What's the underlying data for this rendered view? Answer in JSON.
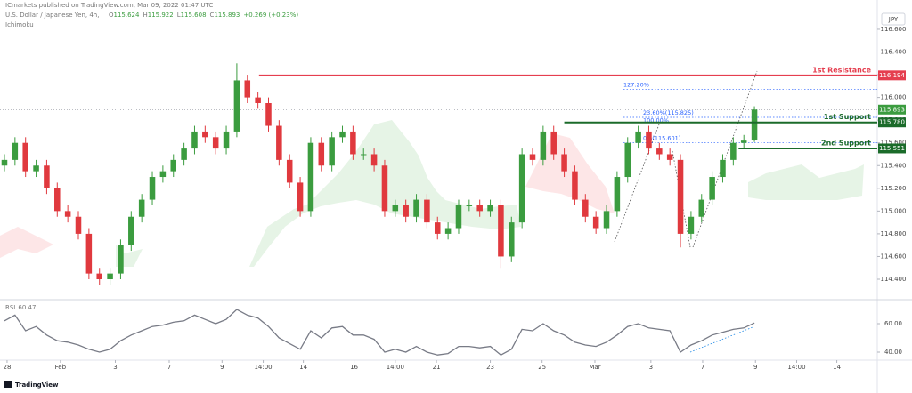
{
  "header": {
    "publisher": "ICmarkets published on TradingView.com, Mar 09, 2022 01:47 UTC",
    "symbol": "U.S. Dollar / Japanese Yen, 4h,",
    "ohlc_letters": [
      "O",
      "H",
      "L",
      "C"
    ],
    "change": "+0.269 (+0.23%)",
    "indicator": "Ichimoku",
    "currency": "JPY",
    "brand": "TradingView"
  },
  "chart_data": {
    "type": "candlestick",
    "candles": {
      "open": [
        115.4,
        115.45,
        115.6,
        115.35,
        115.4,
        115.2,
        115.0,
        114.95,
        114.8,
        114.45,
        114.4,
        114.45,
        114.7,
        114.95,
        115.1,
        115.3,
        115.35,
        115.45,
        115.55,
        115.7,
        115.65,
        115.55,
        115.7,
        116.15,
        116.0,
        115.95,
        115.75,
        115.45,
        115.25,
        115.0,
        115.6,
        115.4,
        115.65,
        115.7,
        115.5,
        115.5,
        115.4,
        115.0,
        115.05,
        114.95,
        115.1,
        114.9,
        114.8,
        114.85,
        115.05,
        115.05,
        115.0,
        115.05,
        114.6,
        114.9,
        115.5,
        115.45,
        115.7,
        115.5,
        115.35,
        115.1,
        114.95,
        114.85,
        115.0,
        115.3,
        115.6,
        115.7,
        115.55,
        115.5,
        115.45,
        114.8,
        114.95,
        115.1,
        115.3,
        115.45,
        115.6,
        115.624
      ],
      "high": [
        115.5,
        115.65,
        115.65,
        115.45,
        115.45,
        115.25,
        115.05,
        115.0,
        114.85,
        114.5,
        114.5,
        114.75,
        115.0,
        115.15,
        115.35,
        115.4,
        115.5,
        115.6,
        115.75,
        115.75,
        115.7,
        115.75,
        116.3,
        116.2,
        116.05,
        116.0,
        115.8,
        115.5,
        115.3,
        115.65,
        115.65,
        115.7,
        115.75,
        115.75,
        115.55,
        115.55,
        115.45,
        115.1,
        115.1,
        115.15,
        115.15,
        114.95,
        114.9,
        115.1,
        115.1,
        115.1,
        115.1,
        115.1,
        114.95,
        115.55,
        115.55,
        115.75,
        115.75,
        115.55,
        115.4,
        115.15,
        115.0,
        115.05,
        115.35,
        115.65,
        115.75,
        115.75,
        115.6,
        115.55,
        115.5,
        115.0,
        115.15,
        115.35,
        115.5,
        115.65,
        115.67,
        115.922
      ],
      "low": [
        115.35,
        115.4,
        115.3,
        115.3,
        115.15,
        114.95,
        114.9,
        114.75,
        114.4,
        114.35,
        114.35,
        114.4,
        114.65,
        114.9,
        115.05,
        115.25,
        115.3,
        115.4,
        115.5,
        115.6,
        115.5,
        115.5,
        115.65,
        115.95,
        115.9,
        115.7,
        115.4,
        115.2,
        114.95,
        114.95,
        115.35,
        115.35,
        115.6,
        115.45,
        115.45,
        115.35,
        114.95,
        114.95,
        114.9,
        114.9,
        114.85,
        114.75,
        114.75,
        114.8,
        115.0,
        114.95,
        114.95,
        114.5,
        114.55,
        114.85,
        115.4,
        115.4,
        115.45,
        115.3,
        115.05,
        114.9,
        114.8,
        114.8,
        114.95,
        115.25,
        115.55,
        115.5,
        115.45,
        115.4,
        114.68,
        114.75,
        114.9,
        115.05,
        115.25,
        115.4,
        115.55,
        115.608
      ],
      "close": [
        115.45,
        115.6,
        115.35,
        115.4,
        115.2,
        115.0,
        114.95,
        114.8,
        114.45,
        114.4,
        114.45,
        114.7,
        114.95,
        115.1,
        115.3,
        115.35,
        115.45,
        115.55,
        115.7,
        115.65,
        115.55,
        115.7,
        116.15,
        116.0,
        115.95,
        115.75,
        115.45,
        115.25,
        115.0,
        115.6,
        115.4,
        115.65,
        115.7,
        115.5,
        115.5,
        115.4,
        115.0,
        115.05,
        114.95,
        115.1,
        114.9,
        114.8,
        114.85,
        115.05,
        115.05,
        115.0,
        115.05,
        114.6,
        114.9,
        115.5,
        115.45,
        115.7,
        115.5,
        115.35,
        115.1,
        114.95,
        114.85,
        115.0,
        115.3,
        115.6,
        115.7,
        115.55,
        115.5,
        115.45,
        114.8,
        114.95,
        115.1,
        115.3,
        115.45,
        115.6,
        115.62,
        115.893
      ]
    },
    "color_up": "#3b9c3f",
    "color_down": "#e0393e",
    "xlim": [
      -0.42,
      82.63
    ],
    "xticks": [
      {
        "value": 0.25,
        "label": "28"
      },
      {
        "value": 5.3,
        "label": "Feb"
      },
      {
        "value": 10.5,
        "label": "3"
      },
      {
        "value": 15.6,
        "label": "7"
      },
      {
        "value": 20.6,
        "label": "9"
      },
      {
        "value": 24.5,
        "label": "14:00"
      },
      {
        "value": 28.3,
        "label": "14"
      },
      {
        "value": 33.1,
        "label": "16"
      },
      {
        "value": 37,
        "label": "14:00"
      },
      {
        "value": 40.9,
        "label": "21"
      },
      {
        "value": 46,
        "label": "23"
      },
      {
        "value": 50.9,
        "label": "25"
      },
      {
        "value": 55.9,
        "label": "Mar"
      },
      {
        "value": 61.2,
        "label": "3"
      },
      {
        "value": 66.1,
        "label": "7"
      },
      {
        "value": 71.1,
        "label": "9"
      },
      {
        "value": 75,
        "label": "14:00"
      },
      {
        "value": 78.8,
        "label": "14"
      }
    ],
    "ylim": [
      114.22,
      116.858
    ],
    "yticks": [
      {
        "value": 116.6,
        "label": "116.600"
      },
      {
        "value": 116.4,
        "label": "116.400"
      },
      {
        "value": 116.2,
        "label": "116.200"
      },
      {
        "value": 116.0,
        "label": "116.000"
      },
      {
        "value": 115.8,
        "label": "115.800"
      },
      {
        "value": 115.6,
        "label": "115.600"
      },
      {
        "value": 115.4,
        "label": "115.400"
      },
      {
        "value": 115.2,
        "label": "115.200"
      },
      {
        "value": 115.0,
        "label": "115.000"
      },
      {
        "value": 114.8,
        "label": "114.800"
      },
      {
        "value": 114.6,
        "label": "114.600"
      },
      {
        "value": 114.4,
        "label": "114.400"
      }
    ],
    "grid": false,
    "levels": [
      {
        "name": "1st Resistance",
        "value": 116.194,
        "price_label": "116.194",
        "color": "#e53e4f",
        "from": 24.1
      },
      {
        "name": "1st Support",
        "value": 115.78,
        "price_label": "115.780",
        "color": "#1b6b2a",
        "from": 53
      },
      {
        "name": "2nd Support",
        "value": 115.551,
        "price_label": "115.551",
        "color": "#1b6b2a",
        "from": 69.5
      }
    ],
    "fib": [
      {
        "label": "127.20%",
        "value": 116.07
      },
      {
        "label": "23.60%(115.825)",
        "value": 115.825
      },
      {
        "label": "100.00%",
        "value": 115.78
      },
      {
        "label": "0%(115.601)",
        "value": 115.601
      }
    ],
    "fib_color": "#2962ff",
    "rsi": {
      "label": "RSI",
      "color": "#787b86",
      "ylim": [
        34.375,
        75
      ],
      "yticks": [
        {
          "value": 60,
          "label": "60.00"
        },
        {
          "value": 40,
          "label": "40.00"
        }
      ],
      "values": [
        62,
        66,
        55,
        58,
        52,
        48,
        47,
        45,
        42,
        40,
        42,
        48,
        52,
        55,
        58,
        59,
        61,
        62,
        66,
        63,
        60,
        63,
        70,
        66,
        64,
        58,
        50,
        46,
        42,
        55,
        50,
        57,
        58,
        52,
        52,
        49,
        40,
        42,
        40,
        44,
        40,
        38,
        39,
        44,
        44,
        43,
        44,
        38,
        42,
        56,
        55,
        60,
        55,
        52,
        47,
        45,
        44,
        47,
        52,
        58,
        60,
        57,
        56,
        55,
        40,
        45,
        48,
        52,
        54,
        56,
        57,
        60.47
      ]
    }
  }
}
